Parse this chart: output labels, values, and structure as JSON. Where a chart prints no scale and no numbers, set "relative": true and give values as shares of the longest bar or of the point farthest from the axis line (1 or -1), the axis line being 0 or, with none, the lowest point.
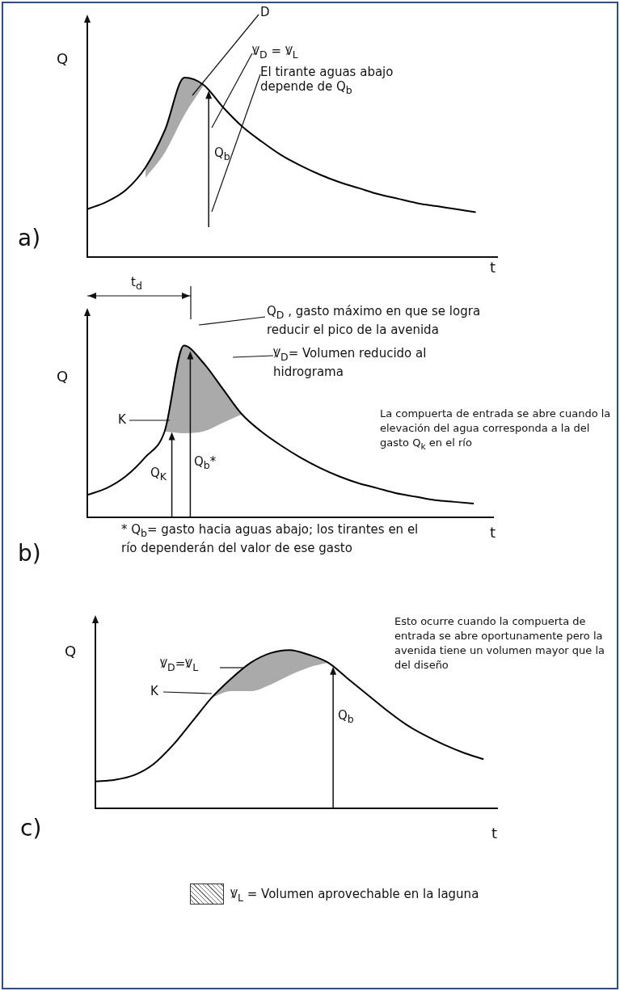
{
  "chart_data": [
    {
      "type": "line",
      "title": "a)",
      "xlabel": "t",
      "ylabel": "Q",
      "relative": true,
      "marker": "none",
      "legend": false,
      "categories": [
        null,
        null,
        null,
        null,
        null,
        null,
        null,
        null,
        null,
        null,
        null,
        null,
        null,
        null,
        null,
        null,
        null,
        null,
        null,
        null,
        null
      ],
      "series": [
        {
          "color": "#000000",
          "values": [
            0.12,
            0.17,
            0.25,
            0.4,
            0.65,
            1.0,
            0.95,
            0.8,
            0.67,
            0.57,
            0.48,
            0.41,
            0.35,
            0.3,
            0.26,
            0.22,
            0.19,
            0.16,
            0.14,
            0.12,
            0.1
          ],
          "lower": [
            null,
            null,
            null,
            0.33,
            0.5,
            0.75,
            0.95,
            null,
            null,
            null,
            null,
            null,
            null,
            null,
            null,
            null,
            null,
            null,
            null,
            null,
            null
          ],
          "upper": [
            null,
            null,
            null,
            0.4,
            0.65,
            1.0,
            0.95,
            null,
            null,
            null,
            null,
            null,
            null,
            null,
            null,
            null,
            null,
            null,
            null,
            null,
            null
          ]
        }
      ],
      "annotations": [
        "D",
        "Ꝟ$_{D}$ = Ꝟ$_{L}$",
        "Q$_{b}$",
        "El tirante aguas abajo depende de Q$_{b}$"
      ]
    },
    {
      "type": "line",
      "title": "b)",
      "xlabel": "t",
      "ylabel": "Q",
      "relative": true,
      "marker": "none",
      "legend": false,
      "categories": [
        null,
        null,
        null,
        null,
        null,
        null,
        null,
        null,
        null,
        null,
        null,
        null,
        null,
        null,
        null,
        null,
        null,
        null,
        null,
        null,
        null
      ],
      "series": [
        {
          "color": "#000000",
          "values": [
            0.13,
            0.17,
            0.24,
            0.35,
            0.5,
            1.0,
            0.9,
            0.75,
            0.6,
            0.5,
            0.42,
            0.35,
            0.29,
            0.24,
            0.2,
            0.17,
            0.14,
            0.12,
            0.1,
            0.09,
            0.08
          ],
          "lower": [
            null,
            null,
            null,
            null,
            0.5,
            0.49,
            0.5,
            0.55,
            0.6,
            null,
            null,
            null,
            null,
            null,
            null,
            null,
            null,
            null,
            null,
            null,
            null
          ],
          "upper": [
            null,
            null,
            null,
            null,
            0.5,
            1.0,
            0.9,
            0.75,
            0.6,
            null,
            null,
            null,
            null,
            null,
            null,
            null,
            null,
            null,
            null,
            null,
            null
          ]
        }
      ],
      "annotations": [
        "t$_{d}$",
        "Q$_{D}$ , gasto máximo en que se logra reducir el pico de la avenida",
        "Ꝟ$_{D}$= Volumen reducido al hidrograma",
        "K",
        "Q$_{K}$",
        "Q$_{b}$*",
        "La compuerta de entrada se abre cuando la elevación del agua corresponda a la del gasto Q$_{k}$ en el río",
        "* Q$_{b}$= gasto hacia aguas abajo; los tirantes en el río dependerán del valor de ese gasto"
      ]
    },
    {
      "type": "line",
      "title": "c)",
      "xlabel": "t",
      "ylabel": "Q",
      "relative": true,
      "marker": "none",
      "legend": false,
      "categories": [
        null,
        null,
        null,
        null,
        null,
        null,
        null,
        null,
        null,
        null,
        null,
        null,
        null,
        null,
        null,
        null,
        null,
        null,
        null,
        null,
        null
      ],
      "series": [
        {
          "color": "#000000",
          "values": [
            0.17,
            0.18,
            0.21,
            0.28,
            0.4,
            0.55,
            0.7,
            0.82,
            0.92,
            0.98,
            1.0,
            0.97,
            0.92,
            0.82,
            0.72,
            0.62,
            0.53,
            0.46,
            0.4,
            0.35,
            0.31
          ],
          "lower": [
            null,
            null,
            null,
            null,
            null,
            null,
            0.7,
            0.74,
            0.74,
            0.78,
            0.84,
            0.89,
            0.92,
            null,
            null,
            null,
            null,
            null,
            null,
            null,
            null
          ],
          "upper": [
            null,
            null,
            null,
            null,
            null,
            null,
            0.7,
            0.82,
            0.92,
            0.98,
            1.0,
            0.97,
            0.92,
            null,
            null,
            null,
            null,
            null,
            null,
            null,
            null
          ]
        }
      ],
      "annotations": [
        "Esto ocurre cuando la compuerta de entrada se abre oportunamente pero la avenida tiene un volumen mayor que la del diseño",
        "Ꝟ$_{D}$=Ꝟ$_{L}$",
        "K",
        "Q$_{b}$",
        "Ꝟ$_{L}$ = Volumen aprovechable en la laguna"
      ]
    }
  ]
}
